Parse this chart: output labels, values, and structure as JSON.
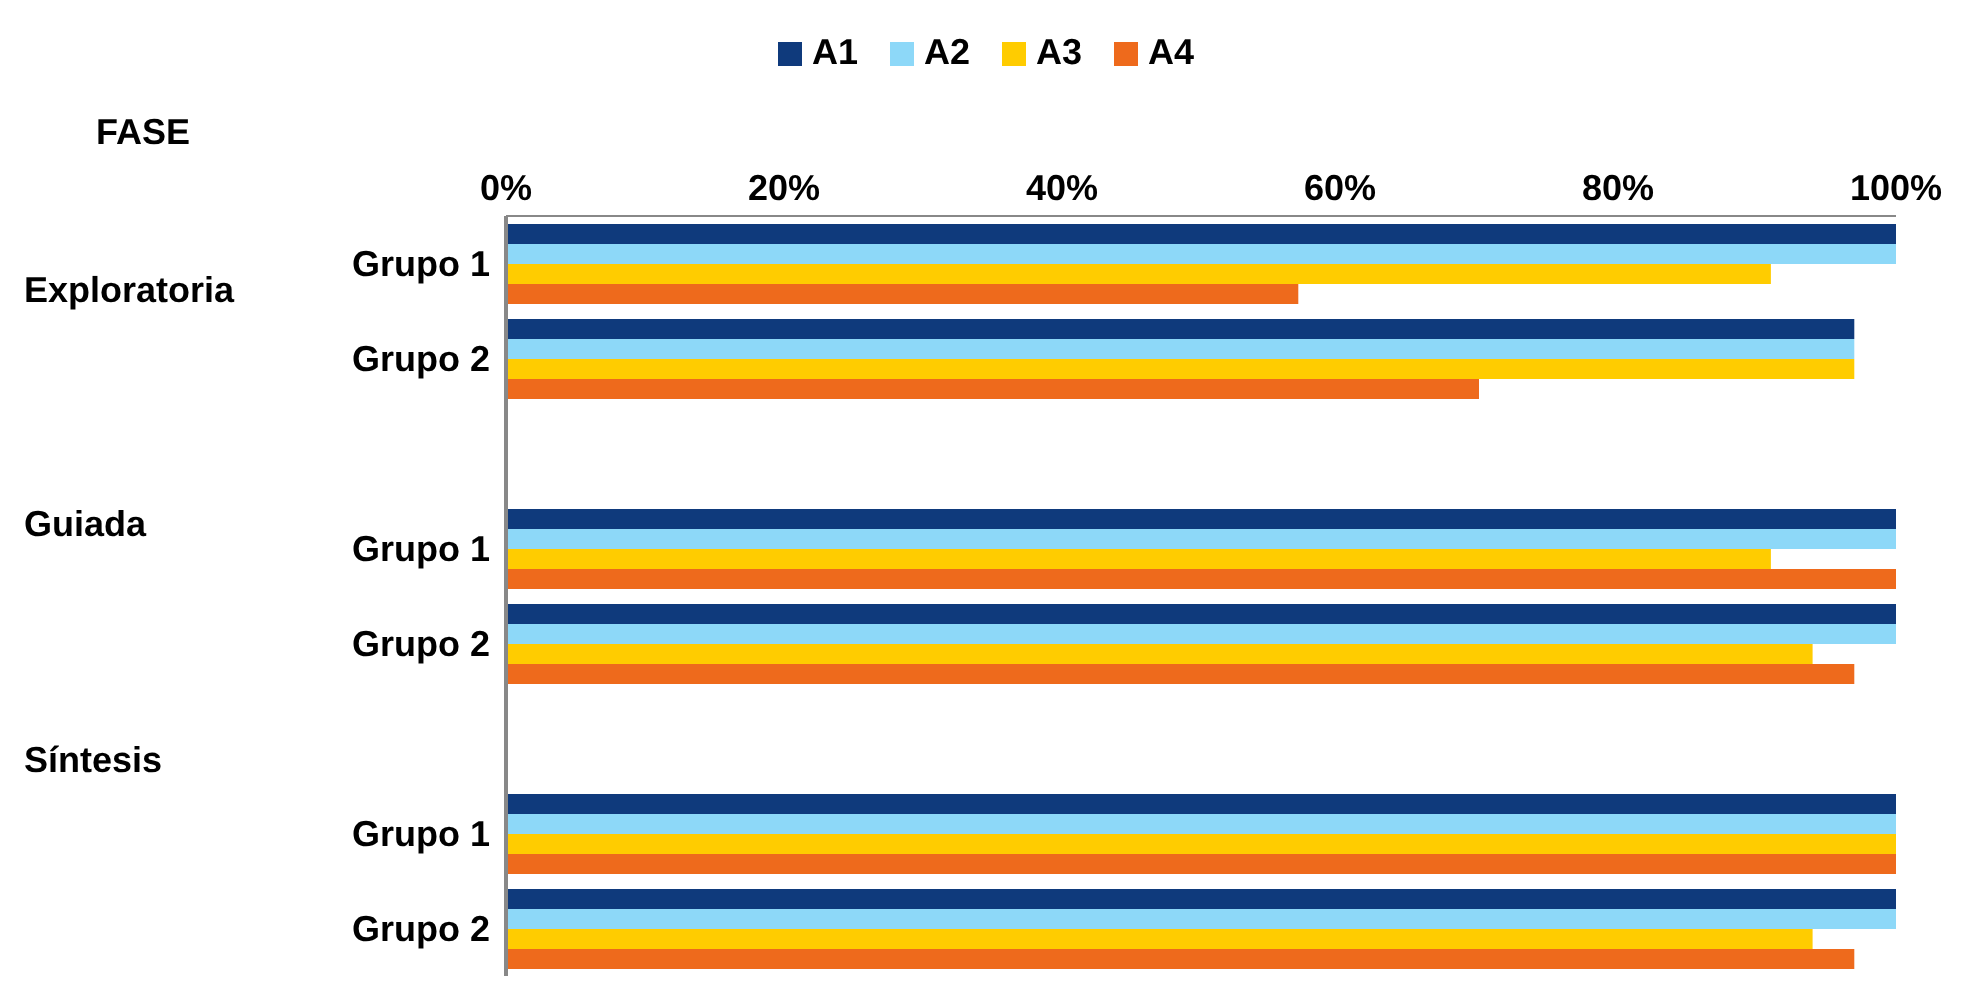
{
  "chart_data": {
    "type": "bar",
    "orientation": "horizontal",
    "ylabel": "FASE",
    "legend": "top",
    "categories": [
      "Grupo 1",
      "Grupo 2",
      null,
      "Grupo 1",
      "Grupo 2",
      null,
      "Grupo 1",
      "Grupo 2"
    ],
    "annotations": [
      "Exploratoria",
      "Guiada",
      "Síntesis"
    ],
    "xlim": [
      0,
      100
    ],
    "xticks": [
      {
        "value": 0,
        "label": "0%"
      },
      {
        "value": 20,
        "label": "20%"
      },
      {
        "value": 40,
        "label": "40%"
      },
      {
        "value": 60,
        "label": "60%"
      },
      {
        "value": 80,
        "label": "80%"
      },
      {
        "value": 100,
        "label": "100%"
      }
    ],
    "series": [
      {
        "name": "A1",
        "color": "#0f3a7c",
        "values": [
          100,
          97,
          null,
          100,
          100,
          null,
          100,
          100
        ]
      },
      {
        "name": "A2",
        "color": "#8dd8f8",
        "values": [
          100,
          97,
          null,
          100,
          100,
          null,
          100,
          100
        ]
      },
      {
        "name": "A3",
        "color": "#ffcc00",
        "values": [
          91,
          97,
          null,
          91,
          94,
          null,
          100,
          94
        ]
      },
      {
        "name": "A4",
        "color": "#ee6a1c",
        "values": [
          57,
          70,
          null,
          100,
          97,
          null,
          100,
          97
        ]
      }
    ]
  }
}
